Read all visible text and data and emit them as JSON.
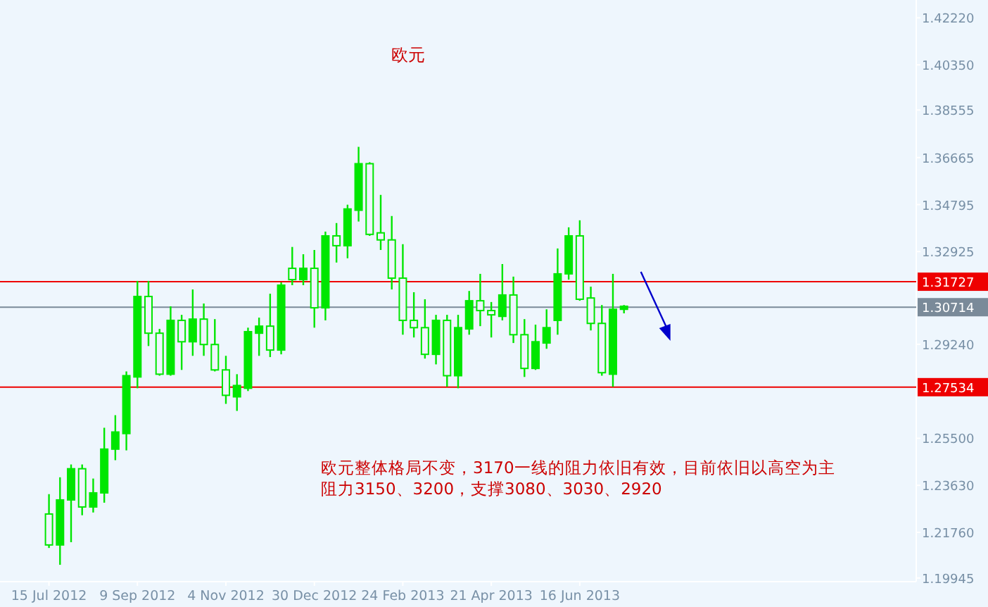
{
  "chart_data": {
    "type": "candlestick",
    "title": "欧元",
    "color": "#00e600",
    "x": [
      "2012-07-15",
      "2012-07-22",
      "2012-07-29",
      "2012-08-05",
      "2012-08-12",
      "2012-08-19",
      "2012-08-26",
      "2012-09-02",
      "2012-09-09",
      "2012-09-16",
      "2012-09-23",
      "2012-09-30",
      "2012-10-07",
      "2012-10-14",
      "2012-10-21",
      "2012-10-28",
      "2012-11-04",
      "2012-11-11",
      "2012-11-18",
      "2012-11-25",
      "2012-12-02",
      "2012-12-09",
      "2012-12-16",
      "2012-12-23",
      "2012-12-30",
      "2013-01-06",
      "2013-01-13",
      "2013-01-20",
      "2013-01-27",
      "2013-02-03",
      "2013-02-10",
      "2013-02-17",
      "2013-02-24",
      "2013-03-03",
      "2013-03-10",
      "2013-03-17",
      "2013-03-24",
      "2013-03-31",
      "2013-04-07",
      "2013-04-14",
      "2013-04-21",
      "2013-04-28",
      "2013-05-05",
      "2013-05-12",
      "2013-05-19",
      "2013-05-26",
      "2013-06-02",
      "2013-06-09",
      "2013-06-16",
      "2013-06-23",
      "2013-06-30",
      "2013-07-07",
      "2013-07-14"
    ],
    "ohlc": [
      [
        1.2249,
        1.2328,
        1.2114,
        1.2126
      ],
      [
        1.2126,
        1.2395,
        1.2047,
        1.2305
      ],
      [
        1.2305,
        1.2446,
        1.2137,
        1.2429
      ],
      [
        1.2429,
        1.2446,
        1.2244,
        1.2277
      ],
      [
        1.2277,
        1.239,
        1.2255,
        1.2333
      ],
      [
        1.2333,
        1.2592,
        1.2294,
        1.2507
      ],
      [
        1.2507,
        1.2642,
        1.2463,
        1.2575
      ],
      [
        1.2569,
        1.2816,
        1.2502,
        1.2799
      ],
      [
        1.2794,
        1.3176,
        1.2749,
        1.3114
      ],
      [
        1.3114,
        1.3176,
        1.2917,
        1.2968
      ],
      [
        1.2968,
        1.2985,
        1.2799,
        1.2805
      ],
      [
        1.2805,
        1.3075,
        1.2799,
        1.3019
      ],
      [
        1.3019,
        1.3041,
        1.2822,
        1.2934
      ],
      [
        1.2934,
        1.3142,
        1.2878,
        1.3024
      ],
      [
        1.3024,
        1.3086,
        1.2878,
        1.2923
      ],
      [
        1.2923,
        1.3024,
        1.2816,
        1.2822
      ],
      [
        1.2822,
        1.2878,
        1.2687,
        1.2721
      ],
      [
        1.2715,
        1.2805,
        1.2659,
        1.276
      ],
      [
        1.2749,
        1.299,
        1.2738,
        1.2974
      ],
      [
        1.2968,
        1.303,
        1.2878,
        1.2996
      ],
      [
        1.2996,
        1.3125,
        1.2873,
        1.2901
      ],
      [
        1.2901,
        1.317,
        1.2884,
        1.3159
      ],
      [
        1.3226,
        1.3311,
        1.3159,
        1.3181
      ],
      [
        1.3181,
        1.3282,
        1.3159,
        1.3226
      ],
      [
        1.3226,
        1.3299,
        1.299,
        1.3069
      ],
      [
        1.3069,
        1.3372,
        1.3019,
        1.3355
      ],
      [
        1.3355,
        1.3406,
        1.3249,
        1.3316
      ],
      [
        1.3316,
        1.3479,
        1.3266,
        1.3462
      ],
      [
        1.3457,
        1.3709,
        1.3412,
        1.3642
      ],
      [
        1.3642,
        1.3648,
        1.3355,
        1.3361
      ],
      [
        1.3367,
        1.3518,
        1.3299,
        1.3339
      ],
      [
        1.3339,
        1.3434,
        1.3142,
        1.3187
      ],
      [
        1.3187,
        1.3322,
        1.2962,
        1.3019
      ],
      [
        1.3019,
        1.3131,
        1.2951,
        1.299
      ],
      [
        1.299,
        1.3103,
        1.2867,
        1.2884
      ],
      [
        1.2884,
        1.3041,
        1.2844,
        1.3019
      ],
      [
        1.3019,
        1.3041,
        1.2755,
        1.2799
      ],
      [
        1.2799,
        1.3041,
        1.2749,
        1.299
      ],
      [
        1.2985,
        1.3136,
        1.2962,
        1.3097
      ],
      [
        1.3097,
        1.3204,
        1.2996,
        1.3058
      ],
      [
        1.3058,
        1.3092,
        1.2951,
        1.3041
      ],
      [
        1.3035,
        1.3243,
        1.3019,
        1.312
      ],
      [
        1.312,
        1.3193,
        1.2929,
        1.2962
      ],
      [
        1.2962,
        1.3024,
        1.2794,
        1.2828
      ],
      [
        1.2828,
        1.3002,
        1.2822,
        1.2934
      ],
      [
        1.2929,
        1.3063,
        1.2906,
        1.299
      ],
      [
        1.3019,
        1.3305,
        1.2962,
        1.3204
      ],
      [
        1.3204,
        1.3389,
        1.3181,
        1.3355
      ],
      [
        1.3355,
        1.3417,
        1.3097,
        1.3103
      ],
      [
        1.3108,
        1.3153,
        1.2979,
        1.3007
      ],
      [
        1.3007,
        1.308,
        1.2799,
        1.2811
      ],
      [
        1.2805,
        1.3204,
        1.2755,
        1.3063
      ],
      [
        1.3063,
        1.308,
        1.3047,
        1.3075
      ]
    ],
    "xlim": [
      "2012-06-14",
      "2014-01-15"
    ],
    "ylim": [
      1.198,
      1.4293
    ],
    "xticks": [
      {
        "value": "2012-07-15",
        "label": "15 Jul 2012"
      },
      {
        "value": "2012-09-09",
        "label": "9 Sep 2012"
      },
      {
        "value": "2012-11-04",
        "label": "4 Nov 2012"
      },
      {
        "value": "2012-12-30",
        "label": "30 Dec 2012"
      },
      {
        "value": "2013-02-24",
        "label": "24 Feb 2013"
      },
      {
        "value": "2013-04-21",
        "label": "21 Apr 2013"
      },
      {
        "value": "2013-06-16",
        "label": "16 Jun 2013"
      }
    ],
    "yticks": [
      {
        "value": 1.4222,
        "label": "1.42220"
      },
      {
        "value": 1.4035,
        "label": "1.40350"
      },
      {
        "value": 1.38555,
        "label": "1.38555"
      },
      {
        "value": 1.36665,
        "label": "1.36665"
      },
      {
        "value": 1.34795,
        "label": "1.34795"
      },
      {
        "value": 1.32925,
        "label": "1.32925"
      },
      {
        "value": 1.2924,
        "label": "1.29240"
      },
      {
        "value": 1.255,
        "label": "1.25500"
      },
      {
        "value": 1.2363,
        "label": "1.23630"
      },
      {
        "value": 1.2176,
        "label": "1.21760"
      },
      {
        "value": 1.19945,
        "label": "1.19945"
      }
    ],
    "ref_lines": [
      {
        "axis": "y",
        "value": 1.31727,
        "label": "1.31727",
        "color": "#ee0000"
      },
      {
        "axis": "y",
        "value": 1.30714,
        "label": "1.30714",
        "color": "#7a8a99"
      },
      {
        "axis": "y",
        "value": 1.27534,
        "label": "1.27534",
        "color": "#ee0000"
      }
    ],
    "annotations": [
      "欧元整体格局不变，3170一线的阻力依旧有效，目前依旧以高空为主",
      "阻力3150、3200，支撑3080、3030、2920"
    ]
  }
}
